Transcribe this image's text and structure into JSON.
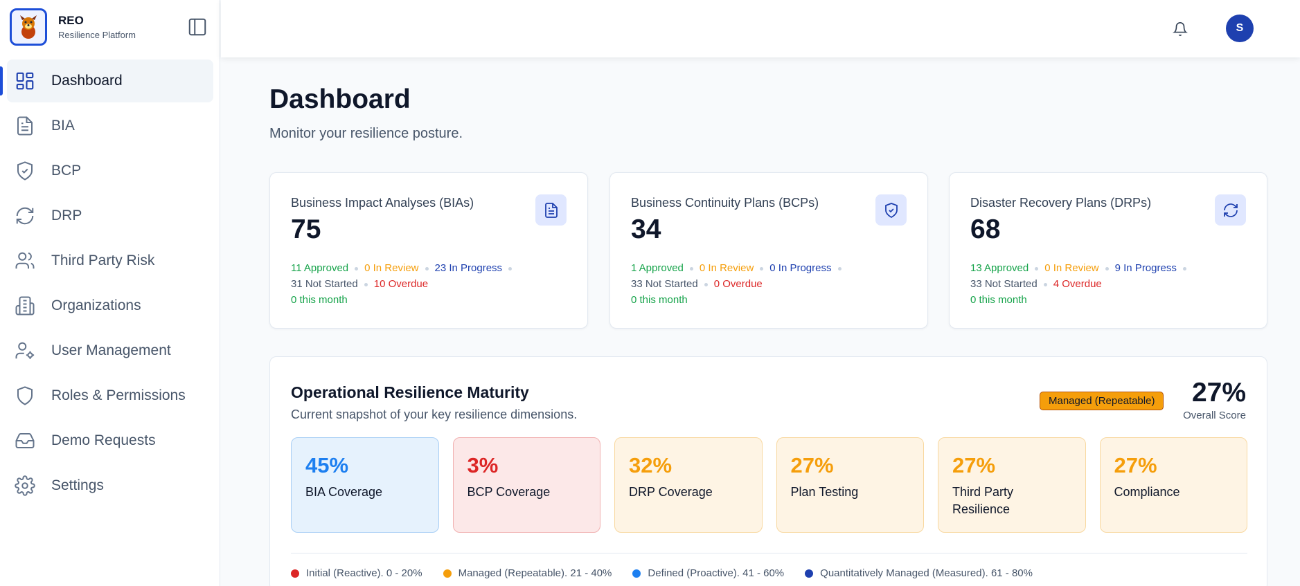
{
  "brand": {
    "name": "REO",
    "subtitle": "Resilience Platform"
  },
  "sidebar": {
    "items": [
      {
        "label": "Dashboard",
        "icon": "dashboard-grid-icon",
        "active": true
      },
      {
        "label": "BIA",
        "icon": "document-icon"
      },
      {
        "label": "BCP",
        "icon": "shield-check-icon"
      },
      {
        "label": "DRP",
        "icon": "refresh-icon"
      },
      {
        "label": "Third Party Risk",
        "icon": "users-icon"
      },
      {
        "label": "Organizations",
        "icon": "building-icon"
      },
      {
        "label": "User Management",
        "icon": "user-cog-icon"
      },
      {
        "label": "Roles & Permissions",
        "icon": "shield-icon"
      },
      {
        "label": "Demo Requests",
        "icon": "inbox-icon"
      },
      {
        "label": "Settings",
        "icon": "gear-icon"
      }
    ]
  },
  "topbar": {
    "avatar_initial": "S"
  },
  "page": {
    "title": "Dashboard",
    "subtitle": "Monitor your resilience posture."
  },
  "stats": [
    {
      "title": "Business Impact Analyses (BIAs)",
      "value": "75",
      "icon": "document-icon",
      "approved": "11 Approved",
      "in_review": "0 In Review",
      "in_progress": "23 In Progress",
      "not_started": "31 Not Started",
      "overdue": "10 Overdue",
      "this_month": "0 this month"
    },
    {
      "title": "Business Continuity Plans (BCPs)",
      "value": "34",
      "icon": "shield-check-icon",
      "approved": "1 Approved",
      "in_review": "0 In Review",
      "in_progress": "0 In Progress",
      "not_started": "33 Not Started",
      "overdue": "0 Overdue",
      "this_month": "0 this month"
    },
    {
      "title": "Disaster Recovery Plans (DRPs)",
      "value": "68",
      "icon": "refresh-icon",
      "approved": "13 Approved",
      "in_review": "0 In Review",
      "in_progress": "9 In Progress",
      "not_started": "33 Not Started",
      "overdue": "4 Overdue",
      "this_month": "0 this month"
    }
  ],
  "maturity": {
    "title": "Operational Resilience Maturity",
    "subtitle": "Current snapshot of your key resilience dimensions.",
    "badge": "Managed (Repeatable)",
    "score": "27%",
    "score_label": "Overall Score",
    "tiles": [
      {
        "value": "45%",
        "label": "BIA Coverage",
        "color": "#1d7ff0",
        "bg": "#e6f2fd",
        "border": "#a9cff5"
      },
      {
        "value": "3%",
        "label": "BCP Coverage",
        "color": "#dc2626",
        "bg": "#fce8e8",
        "border": "#f1b0b0"
      },
      {
        "value": "32%",
        "label": "DRP Coverage",
        "color": "#f59e0b",
        "bg": "#fef4e4",
        "border": "#f8d8a0"
      },
      {
        "value": "27%",
        "label": "Plan Testing",
        "color": "#f59e0b",
        "bg": "#fef4e4",
        "border": "#f8d8a0"
      },
      {
        "value": "27%",
        "label": "Third Party Resilience",
        "color": "#f59e0b",
        "bg": "#fef4e4",
        "border": "#f8d8a0"
      },
      {
        "value": "27%",
        "label": "Compliance",
        "color": "#f59e0b",
        "bg": "#fef4e4",
        "border": "#f8d8a0"
      }
    ],
    "legend": [
      {
        "label": "Initial (Reactive). 0 - 20%",
        "color": "#dc2626"
      },
      {
        "label": "Managed (Repeatable). 21 - 40%",
        "color": "#f59e0b"
      },
      {
        "label": "Defined (Proactive). 41 - 60%",
        "color": "#1d7ff0"
      },
      {
        "label": "Quantitatively Managed (Measured). 61 - 80%",
        "color": "#1e40af"
      }
    ]
  }
}
